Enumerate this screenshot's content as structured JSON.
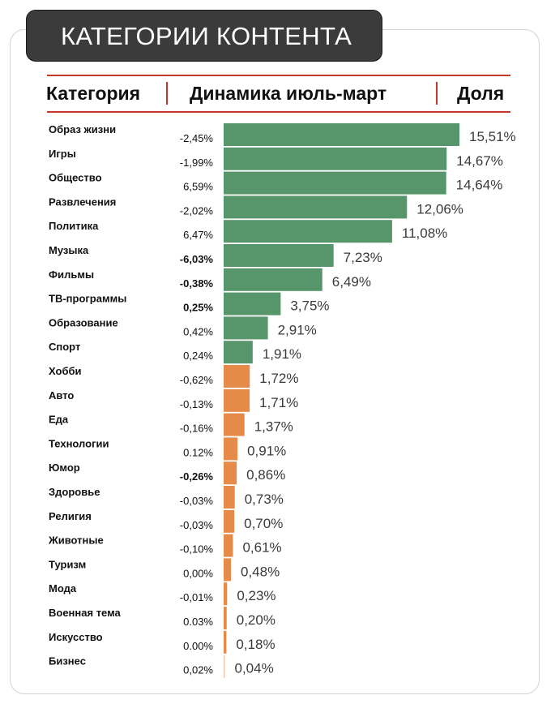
{
  "header": {
    "title": "КАТЕГОРИИ КОНТЕНТА",
    "col_category": "Категория",
    "col_change": "Динамика июль-март",
    "col_share": "Доля"
  },
  "colors": {
    "green": "#57956A",
    "orange": "#E58A48",
    "light_orange": "#F2C9A8"
  },
  "chart_data": {
    "type": "bar",
    "orientation": "horizontal",
    "title": "КАТЕГОРИИ КОНТЕНТА",
    "categories": [
      "Образ жизни",
      "Игры",
      "Общество",
      "Развлечения",
      "Политика",
      "Музыка",
      "Фильмы",
      "ТВ-программы",
      "Образование",
      "Спорт",
      "Хобби",
      "Авто",
      "Еда",
      "Технологии",
      "Юмор",
      "Здоровье",
      "Религия",
      "Животные",
      "Туризм",
      "Мода",
      "Военная тема",
      "Искусство",
      "Бизнес"
    ],
    "values": [
      15.51,
      14.67,
      14.64,
      12.06,
      11.08,
      7.23,
      6.49,
      3.75,
      2.91,
      1.91,
      1.72,
      1.71,
      1.37,
      0.91,
      0.86,
      0.73,
      0.7,
      0.61,
      0.48,
      0.23,
      0.2,
      0.18,
      0.04
    ],
    "value_labels": [
      "15,51%",
      "14,67%",
      "14,64%",
      "12,06%",
      "11,08%",
      "7,23%",
      "6,49%",
      "3,75%",
      "2,91%",
      "1,91%",
      "1,72%",
      "1,71%",
      "1,37%",
      "0,91%",
      "0,86%",
      "0,73%",
      "0,70%",
      "0,61%",
      "0,48%",
      "0,23%",
      "0,20%",
      "0,18%",
      "0,04%"
    ],
    "changes": [
      "-2,45%",
      "-1,99%",
      "6,59%",
      "-2,02%",
      "6,47%",
      "-6,03%",
      "-0,38%",
      "0,25%",
      "0,42%",
      "0,24%",
      "-0,62%",
      "-0,13%",
      "-0,16%",
      "0.12%",
      "-0,26%",
      "-0,03%",
      "-0,03%",
      "-0,10%",
      "0,00%",
      "-0,01%",
      "0.03%",
      "0.00%",
      "0,02%"
    ],
    "changes_bold": [
      false,
      false,
      false,
      false,
      false,
      true,
      true,
      true,
      false,
      false,
      false,
      false,
      false,
      false,
      true,
      false,
      false,
      false,
      false,
      false,
      false,
      false,
      false
    ],
    "bar_colors": [
      "green",
      "green",
      "green",
      "green",
      "green",
      "green",
      "green",
      "green",
      "green",
      "green",
      "orange",
      "orange",
      "orange",
      "orange",
      "orange",
      "orange",
      "orange",
      "orange",
      "orange",
      "orange",
      "orange",
      "orange",
      "light_orange"
    ],
    "xlim": [
      0,
      15.51
    ],
    "unit": "%"
  }
}
